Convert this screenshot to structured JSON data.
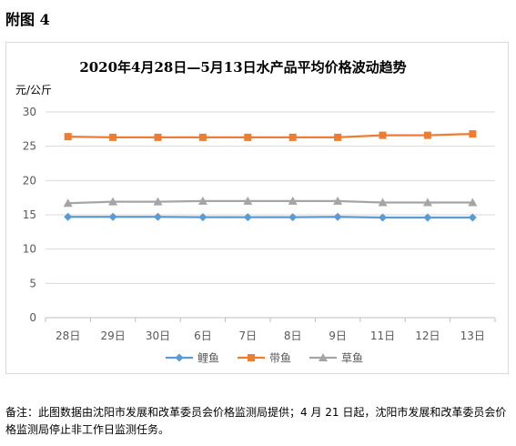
{
  "heading": "附图 4",
  "chart_data": {
    "type": "line",
    "title": "2020年4月28日—5月13日水产品平均价格波动趋势",
    "ylabel": "元/公斤",
    "xlabel": "",
    "categories": [
      "28日",
      "29日",
      "30日",
      "6日",
      "7日",
      "8日",
      "9日",
      "11日",
      "12日",
      "13日"
    ],
    "ylim": [
      0,
      30
    ],
    "yticks": [
      0,
      5,
      10,
      15,
      20,
      25,
      30
    ],
    "grid": true,
    "legend": "bottom",
    "series": [
      {
        "name": "鲤鱼",
        "color": "#5b9bd5",
        "marker": "diamond",
        "values": [
          14.7,
          14.7,
          14.7,
          14.65,
          14.65,
          14.65,
          14.7,
          14.6,
          14.6,
          14.6
        ]
      },
      {
        "name": "带鱼",
        "color": "#ed7d31",
        "marker": "square",
        "values": [
          26.4,
          26.3,
          26.3,
          26.3,
          26.3,
          26.3,
          26.3,
          26.6,
          26.6,
          26.8
        ]
      },
      {
        "name": "草鱼",
        "color": "#a5a5a5",
        "marker": "triangle",
        "values": [
          16.7,
          16.9,
          16.9,
          17.0,
          17.0,
          17.0,
          17.0,
          16.8,
          16.8,
          16.8
        ]
      }
    ]
  },
  "footnote": "备注：此图数据由沈阳市发展和改革委员会价格监测局提供；4 月 21 日起，沈阳市发展和改革委员会价格监测局停止非工作日监测任务。"
}
